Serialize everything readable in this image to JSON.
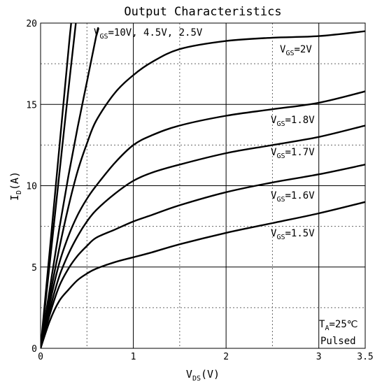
{
  "chart_data": {
    "type": "line",
    "title": "Output Characteristics",
    "xlabel": {
      "main": "V",
      "sub": "DS",
      "suffix": "(V)"
    },
    "ylabel": {
      "main": "I",
      "sub": "D",
      "suffix": "(A)"
    },
    "xlim": [
      0,
      3.5
    ],
    "ylim": [
      0,
      20
    ],
    "x_ticks": [
      0,
      1,
      2,
      3,
      3.5
    ],
    "x_tick_labels": [
      "0",
      "1",
      "2",
      "3",
      "3.5"
    ],
    "y_ticks": [
      0,
      5,
      10,
      15,
      20
    ],
    "y_tick_labels": [
      "0",
      "5",
      "10",
      "15",
      "20"
    ],
    "grid": true,
    "series": [
      {
        "x": [
          0,
          0.1,
          0.2,
          0.3,
          0.33
        ],
        "y": [
          0,
          6.1,
          12.2,
          18.3,
          20
        ]
      },
      {
        "x": [
          0,
          0.1,
          0.2,
          0.3,
          0.38
        ],
        "y": [
          0,
          5.3,
          10.6,
          15.9,
          20
        ]
      },
      {
        "x": [
          0,
          0.1,
          0.2,
          0.3,
          0.4,
          0.5,
          0.6,
          0.62
        ],
        "y": [
          0,
          3.7,
          7.3,
          10.6,
          13.6,
          16.4,
          19.2,
          19.7
        ]
      },
      {
        "x": [
          0,
          0.1,
          0.2,
          0.3,
          0.4,
          0.5,
          0.6,
          0.8,
          1.0,
          1.2,
          1.5,
          2.0,
          2.5,
          3.0,
          3.5
        ],
        "y": [
          0,
          3.2,
          6.1,
          8.7,
          10.9,
          12.6,
          14.0,
          15.7,
          16.8,
          17.6,
          18.4,
          18.9,
          19.1,
          19.2,
          19.5
        ]
      },
      {
        "x": [
          0,
          0.1,
          0.2,
          0.3,
          0.4,
          0.5,
          0.6,
          0.8,
          1.0,
          1.2,
          1.5,
          2.0,
          2.5,
          3.0,
          3.5
        ],
        "y": [
          0,
          2.8,
          5.2,
          6.9,
          8.2,
          9.2,
          10.0,
          11.4,
          12.5,
          13.1,
          13.7,
          14.3,
          14.7,
          15.1,
          15.8
        ]
      },
      {
        "x": [
          0,
          0.1,
          0.2,
          0.3,
          0.4,
          0.5,
          0.6,
          0.8,
          1.0,
          1.2,
          1.5,
          2.0,
          2.5,
          3.0,
          3.5
        ],
        "y": [
          0,
          2.4,
          4.4,
          5.8,
          6.9,
          7.8,
          8.5,
          9.5,
          10.3,
          10.8,
          11.3,
          12.0,
          12.5,
          13.0,
          13.7
        ]
      },
      {
        "x": [
          0,
          0.1,
          0.2,
          0.3,
          0.4,
          0.5,
          0.6,
          0.8,
          1.0,
          1.2,
          1.5,
          2.0,
          2.5,
          3.0,
          3.5
        ],
        "y": [
          0,
          2.1,
          3.8,
          4.9,
          5.7,
          6.3,
          6.8,
          7.3,
          7.8,
          8.2,
          8.8,
          9.6,
          10.2,
          10.7,
          11.3
        ]
      },
      {
        "x": [
          0,
          0.1,
          0.2,
          0.3,
          0.4,
          0.5,
          0.6,
          0.8,
          1.0,
          1.2,
          1.5,
          2.0,
          2.5,
          3.0,
          3.5
        ],
        "y": [
          0,
          1.7,
          2.9,
          3.6,
          4.2,
          4.6,
          4.9,
          5.3,
          5.6,
          5.9,
          6.4,
          7.1,
          7.7,
          8.3,
          9.0
        ]
      }
    ],
    "annotations": [
      {
        "main": "V",
        "sub": "GS",
        "rest": "=10V, 4.5V, 2.5V"
      },
      {
        "main": "V",
        "sub": "GS",
        "rest": "=2V"
      },
      {
        "main": "V",
        "sub": "GS",
        "rest": "=1.8V"
      },
      {
        "main": "V",
        "sub": "GS",
        "rest": "=1.7V"
      },
      {
        "main": "V",
        "sub": "GS",
        "rest": "=1.6V"
      },
      {
        "main": "V",
        "sub": "GS",
        "rest": "=1.5V"
      },
      {
        "main": "T",
        "sub": "A",
        "rest": "=25℃"
      },
      {
        "main": "Pulsed",
        "sub": "",
        "rest": ""
      }
    ]
  }
}
